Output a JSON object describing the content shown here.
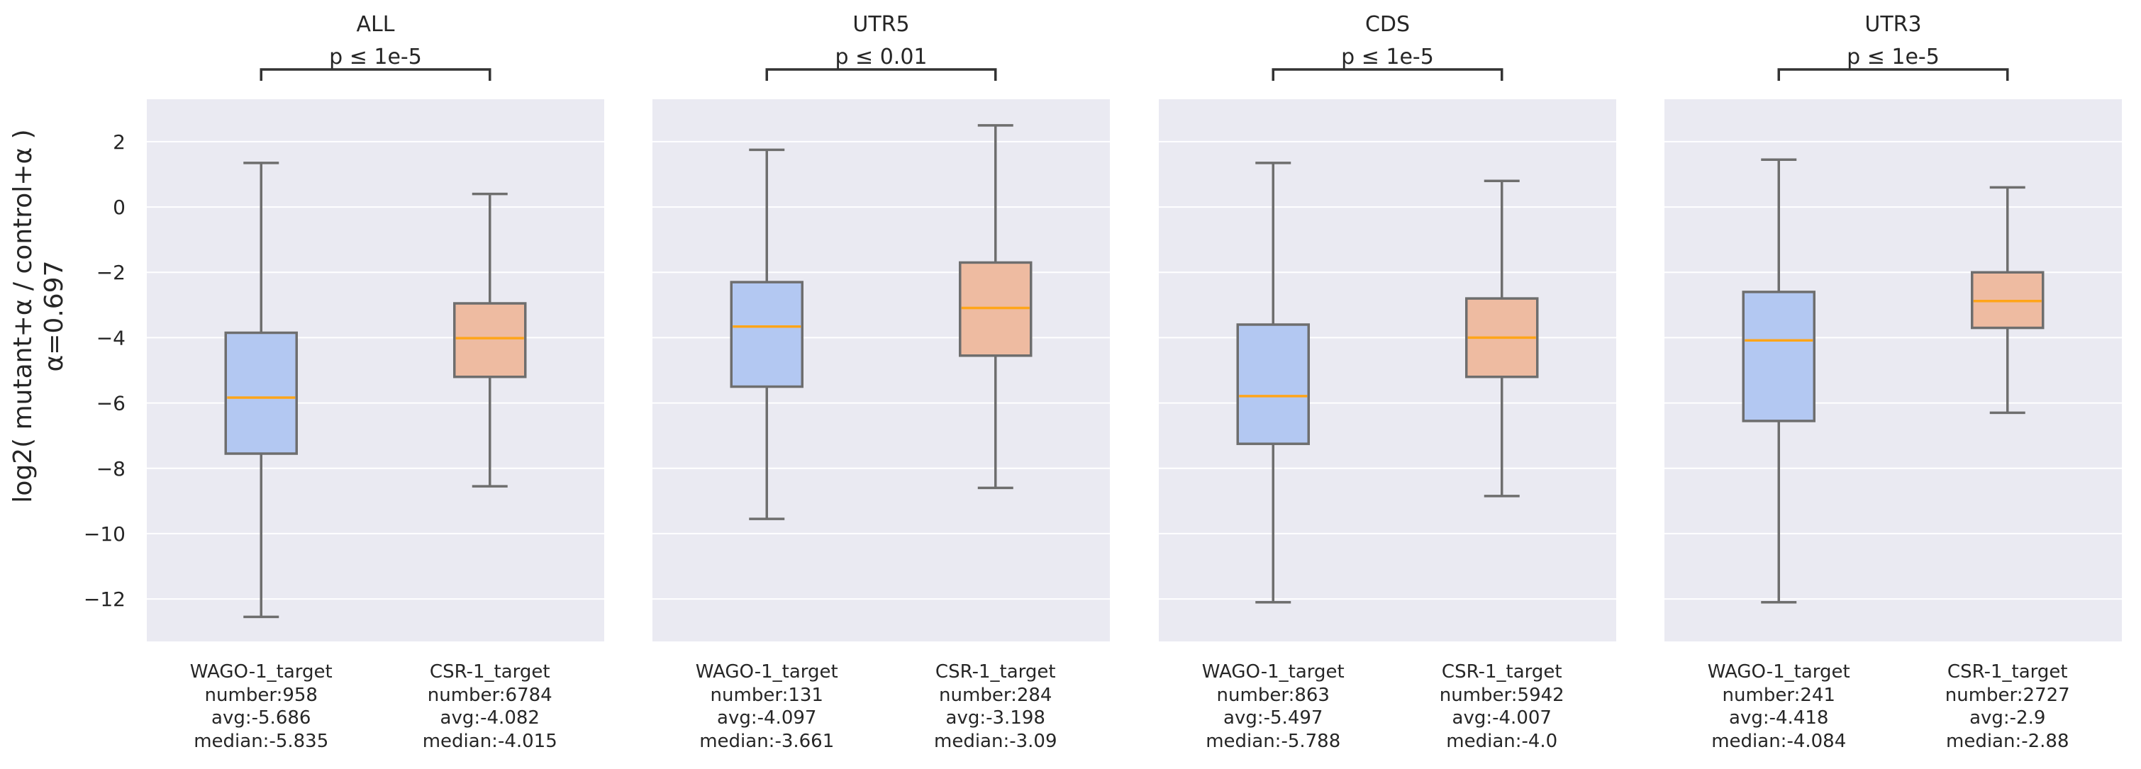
{
  "figure": {
    "ylabel_line1": "log2( mutant+α / control+α )",
    "ylabel_line2": "α=0.697"
  },
  "colors": {
    "panel_bg": "#eaeaf2",
    "grid": "#ffffff",
    "box_wago": "#b3c8f2",
    "box_csr": "#eebba1",
    "median": "#ffa519",
    "whisker": "#6e6e6e",
    "text": "#262626"
  },
  "chart_data": [
    {
      "type": "box",
      "title": "ALL",
      "significance": "p ≤ 1e-5",
      "ylim": [
        -13.3,
        3.3
      ],
      "yticks": [
        2,
        0,
        -2,
        -4,
        -6,
        -8,
        -10,
        -12
      ],
      "ytick_labels": [
        "2",
        "0",
        "−2",
        "−4",
        "−6",
        "−8",
        "−10",
        "−12"
      ],
      "grid": true,
      "categories": [
        {
          "name": "WAGO-1_target",
          "number": "number:958",
          "avg": "avg:-5.686",
          "median_label": "median:-5.835",
          "whislo": -12.55,
          "q1": -7.55,
          "median": -5.835,
          "q3": -3.85,
          "whishi": 1.35
        },
        {
          "name": "CSR-1_target",
          "number": "number:6784",
          "avg": "avg:-4.082",
          "median_label": "median:-4.015",
          "whislo": -8.55,
          "q1": -5.2,
          "median": -4.015,
          "q3": -2.95,
          "whishi": 0.4
        }
      ]
    },
    {
      "type": "box",
      "title": "UTR5",
      "significance": "p ≤ 0.01",
      "ylim": [
        -13.3,
        3.3
      ],
      "yticks": [
        2,
        0,
        -2,
        -4,
        -6,
        -8,
        -10,
        -12
      ],
      "ytick_labels": [
        "2",
        "0",
        "−2",
        "−4",
        "−6",
        "−8",
        "−10",
        "−12"
      ],
      "grid": true,
      "categories": [
        {
          "name": "WAGO-1_target",
          "number": "number:131",
          "avg": "avg:-4.097",
          "median_label": "median:-3.661",
          "whislo": -9.55,
          "q1": -5.5,
          "median": -3.661,
          "q3": -2.3,
          "whishi": 1.75
        },
        {
          "name": "CSR-1_target",
          "number": "number:284",
          "avg": "avg:-3.198",
          "median_label": "median:-3.09",
          "whislo": -8.6,
          "q1": -4.55,
          "median": -3.09,
          "q3": -1.7,
          "whishi": 2.5
        }
      ]
    },
    {
      "type": "box",
      "title": "CDS",
      "significance": "p ≤ 1e-5",
      "ylim": [
        -13.3,
        3.3
      ],
      "yticks": [
        2,
        0,
        -2,
        -4,
        -6,
        -8,
        -10,
        -12
      ],
      "ytick_labels": [
        "2",
        "0",
        "−2",
        "−4",
        "−6",
        "−8",
        "−10",
        "−12"
      ],
      "grid": true,
      "categories": [
        {
          "name": "WAGO-1_target",
          "number": "number:863",
          "avg": "avg:-5.497",
          "median_label": "median:-5.788",
          "whislo": -12.1,
          "q1": -7.25,
          "median": -5.788,
          "q3": -3.6,
          "whishi": 1.35
        },
        {
          "name": "CSR-1_target",
          "number": "number:5942",
          "avg": "avg:-4.007",
          "median_label": "median:-4.0",
          "whislo": -8.85,
          "q1": -5.2,
          "median": -4.0,
          "q3": -2.8,
          "whishi": 0.8
        }
      ]
    },
    {
      "type": "box",
      "title": "UTR3",
      "significance": "p ≤ 1e-5",
      "ylim": [
        -13.3,
        3.3
      ],
      "yticks": [
        2,
        0,
        -2,
        -4,
        -6,
        -8,
        -10,
        -12
      ],
      "ytick_labels": [
        "2",
        "0",
        "−2",
        "−4",
        "−6",
        "−8",
        "−10",
        "−12"
      ],
      "grid": true,
      "categories": [
        {
          "name": "WAGO-1_target",
          "number": "number:241",
          "avg": "avg:-4.418",
          "median_label": "median:-4.084",
          "whislo": -12.1,
          "q1": -6.55,
          "median": -4.084,
          "q3": -2.6,
          "whishi": 1.45
        },
        {
          "name": "CSR-1_target",
          "number": "number:2727",
          "avg": "avg:-2.9",
          "median_label": "median:-2.88",
          "whislo": -6.3,
          "q1": -3.7,
          "median": -2.88,
          "q3": -2.0,
          "whishi": 0.6
        }
      ]
    }
  ]
}
